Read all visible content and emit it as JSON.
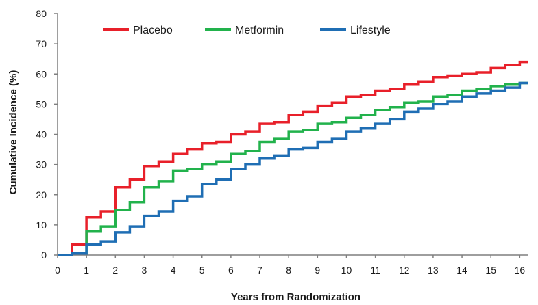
{
  "chart_data": {
    "type": "line",
    "step": true,
    "title": "",
    "xlabel": "Years from Randomization",
    "ylabel": "Cumulative Incidence (%)",
    "xlim": [
      0,
      16.3
    ],
    "ylim": [
      0,
      80
    ],
    "x_ticks": [
      0,
      1,
      2,
      3,
      4,
      5,
      6,
      7,
      8,
      9,
      10,
      11,
      12,
      13,
      14,
      15,
      16
    ],
    "y_ticks": [
      0,
      10,
      20,
      30,
      40,
      50,
      60,
      70,
      80
    ],
    "grid": false,
    "legend_position": "top-left",
    "series": [
      {
        "name": "Placebo",
        "color": "#e8202a",
        "points": [
          [
            0,
            0
          ],
          [
            0.5,
            0
          ],
          [
            0.5,
            3.5
          ],
          [
            1,
            3.5
          ],
          [
            1,
            12.5
          ],
          [
            1.5,
            12.5
          ],
          [
            1.5,
            14.5
          ],
          [
            2,
            14.5
          ],
          [
            2,
            22.5
          ],
          [
            2.5,
            22.5
          ],
          [
            2.5,
            25
          ],
          [
            3,
            25
          ],
          [
            3,
            29.5
          ],
          [
            3.5,
            29.5
          ],
          [
            3.5,
            31
          ],
          [
            4,
            31
          ],
          [
            4,
            33.5
          ],
          [
            4.5,
            33.5
          ],
          [
            4.5,
            35
          ],
          [
            5,
            35
          ],
          [
            5,
            37
          ],
          [
            5.5,
            37
          ],
          [
            5.5,
            37.5
          ],
          [
            6,
            37.5
          ],
          [
            6,
            40
          ],
          [
            6.5,
            40
          ],
          [
            6.5,
            41
          ],
          [
            7,
            41
          ],
          [
            7,
            43.5
          ],
          [
            7.5,
            43.5
          ],
          [
            7.5,
            44
          ],
          [
            8,
            44
          ],
          [
            8,
            46.5
          ],
          [
            8.5,
            46.5
          ],
          [
            8.5,
            47.5
          ],
          [
            9,
            47.5
          ],
          [
            9,
            49.5
          ],
          [
            9.5,
            49.5
          ],
          [
            9.5,
            50.5
          ],
          [
            10,
            50.5
          ],
          [
            10,
            52.5
          ],
          [
            10.5,
            52.5
          ],
          [
            10.5,
            53
          ],
          [
            11,
            53
          ],
          [
            11,
            54.5
          ],
          [
            11.5,
            54.5
          ],
          [
            11.5,
            55
          ],
          [
            12,
            55
          ],
          [
            12,
            56.5
          ],
          [
            12.5,
            56.5
          ],
          [
            12.5,
            57.5
          ],
          [
            13,
            57.5
          ],
          [
            13,
            59
          ],
          [
            13.5,
            59
          ],
          [
            13.5,
            59.5
          ],
          [
            14,
            59.5
          ],
          [
            14,
            60
          ],
          [
            14.5,
            60
          ],
          [
            14.5,
            60.5
          ],
          [
            15,
            60.5
          ],
          [
            15,
            62
          ],
          [
            15.5,
            62
          ],
          [
            15.5,
            63
          ],
          [
            16,
            63
          ],
          [
            16,
            64
          ],
          [
            16.3,
            64
          ]
        ]
      },
      {
        "name": "Metformin",
        "color": "#22b24c",
        "points": [
          [
            0,
            0
          ],
          [
            0.5,
            0
          ],
          [
            0.5,
            0.5
          ],
          [
            1,
            0.5
          ],
          [
            1,
            8
          ],
          [
            1.5,
            8
          ],
          [
            1.5,
            9.5
          ],
          [
            2,
            9.5
          ],
          [
            2,
            15
          ],
          [
            2.5,
            15
          ],
          [
            2.5,
            17.5
          ],
          [
            3,
            17.5
          ],
          [
            3,
            22.5
          ],
          [
            3.5,
            22.5
          ],
          [
            3.5,
            24.5
          ],
          [
            4,
            24.5
          ],
          [
            4,
            28
          ],
          [
            4.5,
            28
          ],
          [
            4.5,
            28.5
          ],
          [
            5,
            28.5
          ],
          [
            5,
            30
          ],
          [
            5.5,
            30
          ],
          [
            5.5,
            31
          ],
          [
            6,
            31
          ],
          [
            6,
            33.5
          ],
          [
            6.5,
            33.5
          ],
          [
            6.5,
            34.5
          ],
          [
            7,
            34.5
          ],
          [
            7,
            37.5
          ],
          [
            7.5,
            37.5
          ],
          [
            7.5,
            38.5
          ],
          [
            8,
            38.5
          ],
          [
            8,
            41
          ],
          [
            8.5,
            41
          ],
          [
            8.5,
            41.5
          ],
          [
            9,
            41.5
          ],
          [
            9,
            43.5
          ],
          [
            9.5,
            43.5
          ],
          [
            9.5,
            44
          ],
          [
            10,
            44
          ],
          [
            10,
            45.5
          ],
          [
            10.5,
            45.5
          ],
          [
            10.5,
            46.5
          ],
          [
            11,
            46.5
          ],
          [
            11,
            48
          ],
          [
            11.5,
            48
          ],
          [
            11.5,
            49
          ],
          [
            12,
            49
          ],
          [
            12,
            50.5
          ],
          [
            12.5,
            50.5
          ],
          [
            12.5,
            51
          ],
          [
            13,
            51
          ],
          [
            13,
            52.5
          ],
          [
            13.5,
            52.5
          ],
          [
            13.5,
            53
          ],
          [
            14,
            53
          ],
          [
            14,
            54.5
          ],
          [
            14.5,
            54.5
          ],
          [
            14.5,
            55
          ],
          [
            15,
            55
          ],
          [
            15,
            56
          ],
          [
            15.5,
            56
          ],
          [
            15.5,
            56.5
          ],
          [
            16,
            56.5
          ],
          [
            16,
            57
          ],
          [
            16.3,
            57
          ]
        ]
      },
      {
        "name": "Lifestyle",
        "color": "#1f6eb4",
        "points": [
          [
            0,
            0
          ],
          [
            0.5,
            0
          ],
          [
            0.5,
            0.5
          ],
          [
            1,
            0.5
          ],
          [
            1,
            3.5
          ],
          [
            1.5,
            3.5
          ],
          [
            1.5,
            4.5
          ],
          [
            2,
            4.5
          ],
          [
            2,
            7.5
          ],
          [
            2.5,
            7.5
          ],
          [
            2.5,
            9.5
          ],
          [
            3,
            9.5
          ],
          [
            3,
            13
          ],
          [
            3.5,
            13
          ],
          [
            3.5,
            14.5
          ],
          [
            4,
            14.5
          ],
          [
            4,
            18
          ],
          [
            4.5,
            18
          ],
          [
            4.5,
            19.5
          ],
          [
            5,
            19.5
          ],
          [
            5,
            23.5
          ],
          [
            5.5,
            23.5
          ],
          [
            5.5,
            25
          ],
          [
            6,
            25
          ],
          [
            6,
            28.5
          ],
          [
            6.5,
            28.5
          ],
          [
            6.5,
            30
          ],
          [
            7,
            30
          ],
          [
            7,
            32
          ],
          [
            7.5,
            32
          ],
          [
            7.5,
            33
          ],
          [
            8,
            33
          ],
          [
            8,
            35
          ],
          [
            8.5,
            35
          ],
          [
            8.5,
            35.5
          ],
          [
            9,
            35.5
          ],
          [
            9,
            37.5
          ],
          [
            9.5,
            37.5
          ],
          [
            9.5,
            38.5
          ],
          [
            10,
            38.5
          ],
          [
            10,
            41
          ],
          [
            10.5,
            41
          ],
          [
            10.5,
            42
          ],
          [
            11,
            42
          ],
          [
            11,
            43.5
          ],
          [
            11.5,
            43.5
          ],
          [
            11.5,
            45
          ],
          [
            12,
            45
          ],
          [
            12,
            47.5
          ],
          [
            12.5,
            47.5
          ],
          [
            12.5,
            48.5
          ],
          [
            13,
            48.5
          ],
          [
            13,
            50
          ],
          [
            13.5,
            50
          ],
          [
            13.5,
            51
          ],
          [
            14,
            51
          ],
          [
            14,
            52.5
          ],
          [
            14.5,
            52.5
          ],
          [
            14.5,
            53.5
          ],
          [
            15,
            53.5
          ],
          [
            15,
            54.5
          ],
          [
            15.5,
            54.5
          ],
          [
            15.5,
            55.5
          ],
          [
            16,
            55.5
          ],
          [
            16,
            57
          ],
          [
            16.3,
            57
          ]
        ]
      }
    ]
  }
}
